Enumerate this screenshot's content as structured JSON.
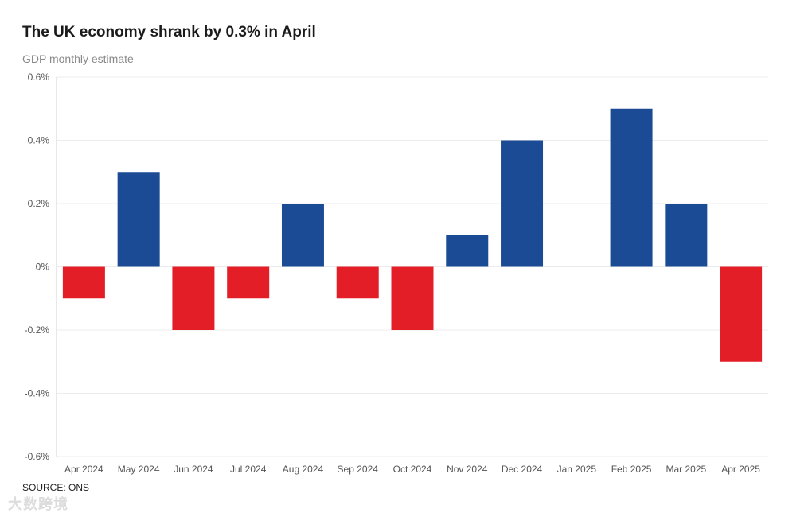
{
  "chart_data": {
    "type": "bar",
    "title": "The UK economy shrank by 0.3% in April",
    "subtitle": "GDP monthly estimate",
    "source": "SOURCE: ONS",
    "categories": [
      "Apr 2024",
      "May 2024",
      "Jun 2024",
      "Jul 2024",
      "Aug 2024",
      "Sep 2024",
      "Oct 2024",
      "Nov 2024",
      "Dec 2024",
      "Jan 2025",
      "Feb 2025",
      "Mar 2025",
      "Apr 2025"
    ],
    "values": [
      -0.1,
      0.3,
      -0.2,
      -0.1,
      0.2,
      -0.1,
      -0.2,
      0.1,
      0.4,
      0.0,
      0.5,
      0.2,
      -0.3
    ],
    "ylim": [
      -0.6,
      0.6
    ],
    "yticks": [
      0.6,
      0.4,
      0.2,
      0,
      -0.2,
      -0.4,
      -0.6
    ],
    "ytick_labels": [
      "0.6%",
      "0.4%",
      "0.2%",
      "0%",
      "-0.2%",
      "-0.4%",
      "-0.6%"
    ],
    "xlabel": "",
    "ylabel": "",
    "grid": true,
    "colors": {
      "positive": "#1a4b94",
      "negative": "#e41e26",
      "grid": "#ececec",
      "axis": "#d0d0d0"
    }
  },
  "watermark": "大数跨境"
}
